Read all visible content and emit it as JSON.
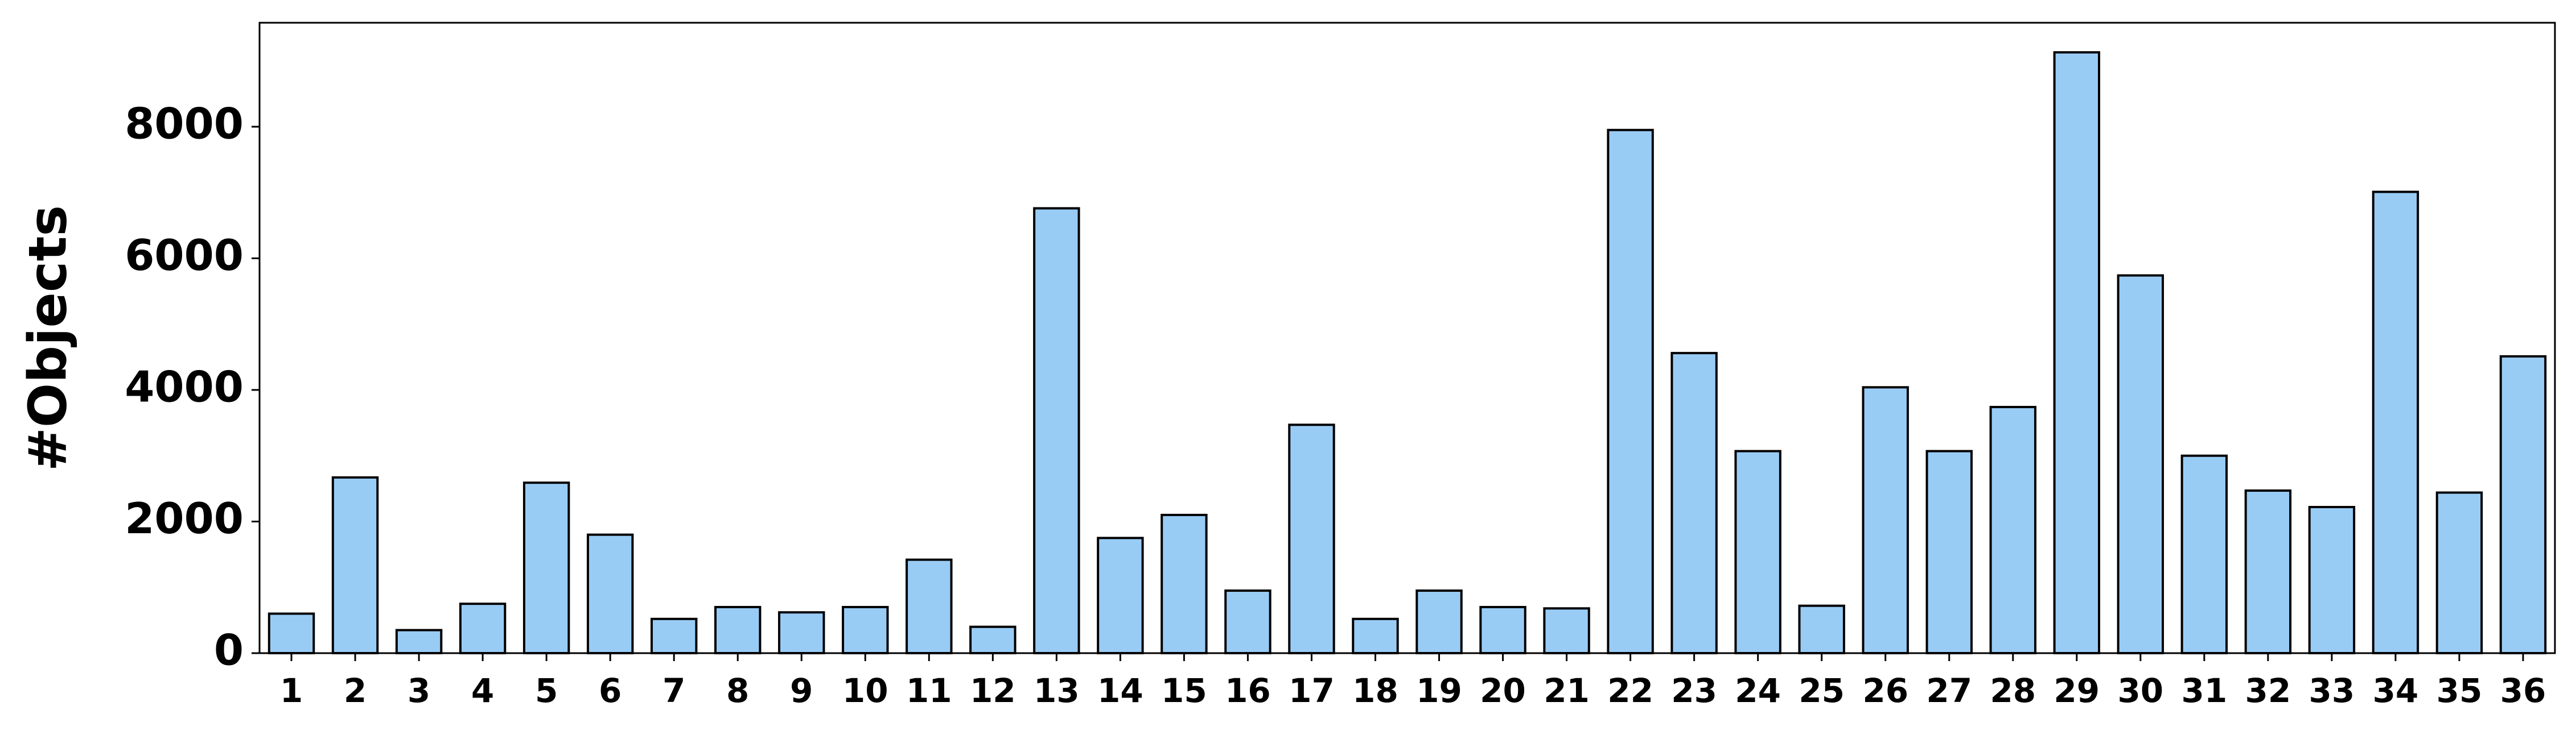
{
  "chart_data": {
    "type": "bar",
    "y_label": "#Objects",
    "categories": [
      "1",
      "2",
      "3",
      "4",
      "5",
      "6",
      "7",
      "8",
      "9",
      "10",
      "11",
      "12",
      "13",
      "14",
      "15",
      "16",
      "17",
      "18",
      "19",
      "20",
      "21",
      "22",
      "23",
      "24",
      "25",
      "26",
      "27",
      "28",
      "29",
      "30",
      "31",
      "32",
      "33",
      "34",
      "35",
      "36"
    ],
    "values": [
      600,
      2670,
      350,
      750,
      2590,
      1800,
      520,
      700,
      620,
      700,
      1420,
      400,
      6760,
      1750,
      2100,
      950,
      3470,
      520,
      950,
      700,
      680,
      7950,
      4560,
      3070,
      720,
      4040,
      3070,
      3740,
      9130,
      5740,
      3000,
      2470,
      2220,
      7010,
      2440,
      4510
    ],
    "color": "#99ccf5",
    "edgecolor": "#000000",
    "ylim": [
      0,
      9580
    ],
    "yticks": [
      0,
      2000,
      4000,
      6000,
      8000
    ],
    "grid": false
  }
}
